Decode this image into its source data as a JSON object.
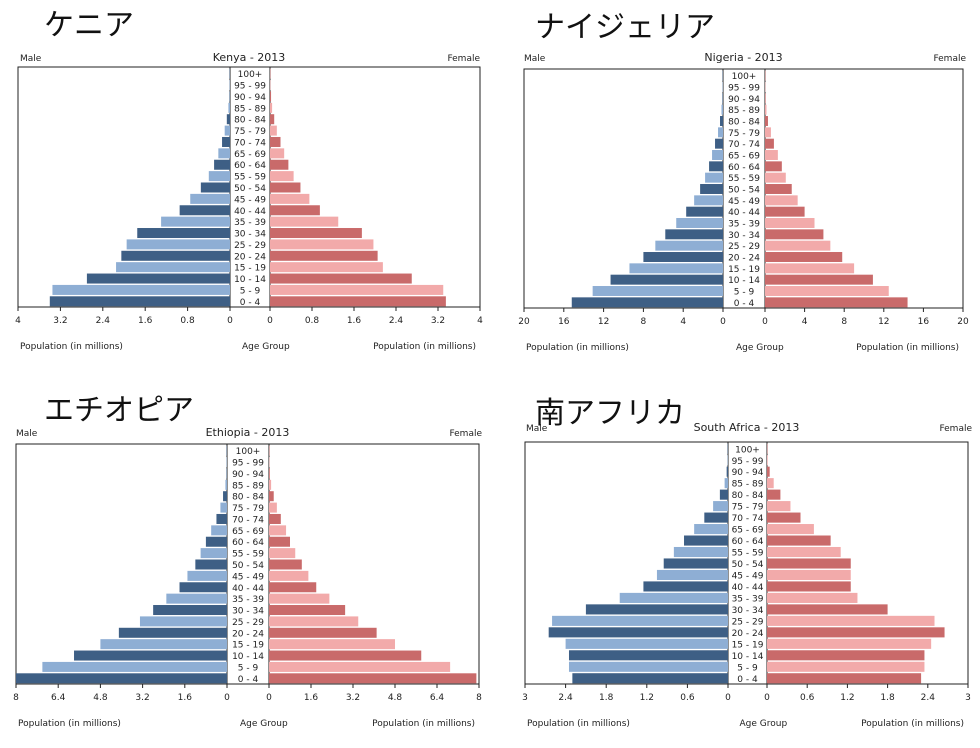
{
  "titles_jp": [
    "ケニア",
    "ナイジェリア",
    "エチオピア",
    "南アフリカ"
  ],
  "colors": {
    "male_dark": "#3e5f85",
    "male_light": "#8eaed4",
    "female_dark": "#c96a6a",
    "female_light": "#f2aaaa"
  },
  "chart_data": [
    {
      "type": "bar",
      "title": "Kenya - 2013",
      "left_label": "Male",
      "right_label": "Female",
      "center_axis_label": "Age Group",
      "xlabel_left": "Population (in millions)",
      "xlabel_right": "Population (in millions)",
      "xmax": 4,
      "ticks_left": [
        "4",
        "3.2",
        "2.4",
        "1.6",
        "0.8",
        "0"
      ],
      "ticks_right": [
        "0",
        "0.8",
        "1.6",
        "2.4",
        "3.2",
        "4"
      ],
      "categories": [
        "0 - 4",
        "5 - 9",
        "10 - 14",
        "15 - 19",
        "20 - 24",
        "25 - 29",
        "30 - 34",
        "35 - 39",
        "40 - 44",
        "45 - 49",
        "50 - 54",
        "55 - 59",
        "60 - 64",
        "65 - 69",
        "70 - 74",
        "75 - 79",
        "80 - 84",
        "85 - 89",
        "90 - 94",
        "95 - 99",
        "100+"
      ],
      "series": [
        {
          "name": "Male",
          "values": [
            3.4,
            3.35,
            2.7,
            2.15,
            2.05,
            1.95,
            1.75,
            1.3,
            0.95,
            0.75,
            0.55,
            0.4,
            0.3,
            0.22,
            0.15,
            0.1,
            0.06,
            0.03,
            0.01,
            0.005,
            0.002
          ]
        },
        {
          "name": "Female",
          "values": [
            3.35,
            3.3,
            2.7,
            2.15,
            2.05,
            1.97,
            1.75,
            1.3,
            0.95,
            0.75,
            0.58,
            0.45,
            0.35,
            0.27,
            0.2,
            0.13,
            0.08,
            0.04,
            0.02,
            0.007,
            0.003
          ]
        }
      ]
    },
    {
      "type": "bar",
      "title": "Nigeria - 2013",
      "left_label": "Male",
      "right_label": "Female",
      "center_axis_label": "Age Group",
      "xlabel_left": "Population (in millions)",
      "xlabel_right": "Population (in millions)",
      "xmax": 20,
      "ticks_left": [
        "20",
        "16",
        "12",
        "8",
        "4",
        "0"
      ],
      "ticks_right": [
        "0",
        "4",
        "8",
        "12",
        "16",
        "20"
      ],
      "categories": [
        "0 - 4",
        "5 - 9",
        "10 - 14",
        "15 - 19",
        "20 - 24",
        "25 - 29",
        "30 - 34",
        "35 - 39",
        "40 - 44",
        "45 - 49",
        "50 - 54",
        "55 - 59",
        "60 - 64",
        "65 - 69",
        "70 - 74",
        "75 - 79",
        "80 - 84",
        "85 - 89",
        "90 - 94",
        "95 - 99",
        "100+"
      ],
      "series": [
        {
          "name": "Male",
          "values": [
            15.2,
            13.1,
            11.3,
            9.4,
            8.0,
            6.8,
            5.8,
            4.7,
            3.7,
            2.9,
            2.3,
            1.8,
            1.4,
            1.1,
            0.8,
            0.5,
            0.3,
            0.15,
            0.06,
            0.02,
            0.01
          ]
        },
        {
          "name": "Female",
          "values": [
            14.4,
            12.5,
            10.9,
            9.0,
            7.8,
            6.6,
            5.9,
            5.0,
            4.0,
            3.3,
            2.7,
            2.1,
            1.7,
            1.3,
            0.9,
            0.6,
            0.3,
            0.15,
            0.06,
            0.02,
            0.01
          ]
        }
      ]
    },
    {
      "type": "bar",
      "title": "Ethiopia - 2013",
      "left_label": "Male",
      "right_label": "Female",
      "center_axis_label": "Age Group",
      "xlabel_left": "Population (in millions)",
      "xlabel_right": "Population (in millions)",
      "xmax": 8,
      "ticks_left": [
        "8",
        "6.4",
        "4.8",
        "3.2",
        "1.6",
        "0"
      ],
      "ticks_right": [
        "0",
        "1.6",
        "3.2",
        "4.8",
        "6.4",
        "8"
      ],
      "categories": [
        "0 - 4",
        "5 - 9",
        "10 - 14",
        "15 - 19",
        "20 - 24",
        "25 - 29",
        "30 - 34",
        "35 - 39",
        "40 - 44",
        "45 - 49",
        "50 - 54",
        "55 - 59",
        "60 - 64",
        "65 - 69",
        "70 - 74",
        "75 - 79",
        "80 - 84",
        "85 - 89",
        "90 - 94",
        "95 - 99",
        "100+"
      ],
      "series": [
        {
          "name": "Male",
          "values": [
            8.0,
            7.0,
            5.8,
            4.8,
            4.1,
            3.3,
            2.8,
            2.3,
            1.8,
            1.5,
            1.2,
            1.0,
            0.8,
            0.6,
            0.4,
            0.25,
            0.15,
            0.06,
            0.02,
            0.005,
            0.002
          ]
        },
        {
          "name": "Female",
          "values": [
            7.9,
            6.9,
            5.8,
            4.8,
            4.1,
            3.4,
            2.9,
            2.3,
            1.8,
            1.5,
            1.25,
            1.0,
            0.8,
            0.65,
            0.45,
            0.3,
            0.18,
            0.08,
            0.03,
            0.01,
            0.003
          ]
        }
      ]
    },
    {
      "type": "bar",
      "title": "South Africa - 2013",
      "left_label": "Male",
      "right_label": "Female",
      "center_axis_label": "Age Group",
      "xlabel_left": "Population (in millions)",
      "xlabel_right": "Population (in millions)",
      "xmax": 3,
      "ticks_left": [
        "3",
        "2.4",
        "1.8",
        "1.2",
        "0.6",
        "0"
      ],
      "ticks_right": [
        "0",
        "0.6",
        "1.2",
        "1.8",
        "2.4",
        "3"
      ],
      "categories": [
        "0 - 4",
        "5 - 9",
        "10 - 14",
        "15 - 19",
        "20 - 24",
        "25 - 29",
        "30 - 34",
        "35 - 39",
        "40 - 44",
        "45 - 49",
        "50 - 54",
        "55 - 59",
        "60 - 64",
        "65 - 69",
        "70 - 74",
        "75 - 79",
        "80 - 84",
        "85 - 89",
        "90 - 94",
        "95 - 99",
        "100+"
      ],
      "series": [
        {
          "name": "Male",
          "values": [
            2.3,
            2.35,
            2.35,
            2.4,
            2.65,
            2.6,
            2.1,
            1.6,
            1.25,
            1.05,
            0.95,
            0.8,
            0.65,
            0.5,
            0.35,
            0.22,
            0.12,
            0.05,
            0.02,
            0.005,
            0.002
          ]
        },
        {
          "name": "Female",
          "values": [
            2.3,
            2.35,
            2.35,
            2.45,
            2.65,
            2.5,
            1.8,
            1.35,
            1.25,
            1.25,
            1.25,
            1.1,
            0.95,
            0.7,
            0.5,
            0.35,
            0.2,
            0.1,
            0.04,
            0.01,
            0.003
          ]
        }
      ]
    }
  ]
}
